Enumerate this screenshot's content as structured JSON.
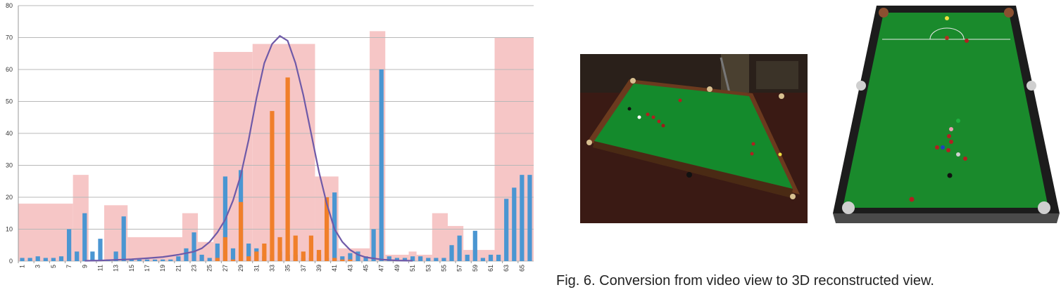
{
  "chart_data": {
    "type": "bar",
    "y_ticks": [
      "0",
      "10",
      "20",
      "30",
      "40",
      "50",
      "60",
      "70",
      "80"
    ],
    "ylim": [
      0,
      80
    ],
    "x_labels": [
      "1",
      "3",
      "5",
      "7",
      "9",
      "11",
      "13",
      "15",
      "17",
      "19",
      "21",
      "23",
      "25",
      "27",
      "29",
      "31",
      "33",
      "35",
      "37",
      "39",
      "41",
      "43",
      "45",
      "47",
      "49",
      "51",
      "53",
      "55",
      "57",
      "59",
      "61",
      "63",
      "65"
    ],
    "x_range": [
      1,
      66
    ],
    "grid": true,
    "background_segments": [
      {
        "x_start": 1,
        "x_end": 7,
        "value": 18
      },
      {
        "x_start": 8,
        "x_end": 9,
        "value": 27
      },
      {
        "x_start": 12,
        "x_end": 14,
        "value": 17.5
      },
      {
        "x_start": 15,
        "x_end": 21,
        "value": 7.5
      },
      {
        "x_start": 22,
        "x_end": 23,
        "value": 15
      },
      {
        "x_start": 24,
        "x_end": 25,
        "value": 6
      },
      {
        "x_start": 26,
        "x_end": 30,
        "value": 65.5
      },
      {
        "x_start": 31,
        "x_end": 38,
        "value": 68
      },
      {
        "x_start": 39,
        "x_end": 41,
        "value": 26.5
      },
      {
        "x_start": 42,
        "x_end": 45,
        "value": 4
      },
      {
        "x_start": 46,
        "x_end": 47,
        "value": 72
      },
      {
        "x_start": 48,
        "x_end": 50,
        "value": 2
      },
      {
        "x_start": 51,
        "x_end": 51,
        "value": 3
      },
      {
        "x_start": 52,
        "x_end": 53,
        "value": 2
      },
      {
        "x_start": 54,
        "x_end": 55,
        "value": 15
      },
      {
        "x_start": 56,
        "x_end": 57,
        "value": 11
      },
      {
        "x_start": 58,
        "x_end": 59,
        "value": 3.5
      },
      {
        "x_start": 60,
        "x_end": 61,
        "value": 3.5
      },
      {
        "x_start": 62,
        "x_end": 66,
        "value": 70
      }
    ],
    "series": [
      {
        "color": "#4a96d2",
        "x": [
          1,
          2,
          3,
          4,
          5,
          6,
          7,
          8,
          9,
          10,
          11,
          12,
          13,
          14,
          15,
          16,
          17,
          18,
          19,
          20,
          21,
          22,
          23,
          24,
          25,
          26,
          27,
          28,
          29,
          30,
          31,
          32,
          33,
          34,
          35,
          36,
          37,
          38,
          39,
          40,
          41,
          42,
          43,
          44,
          45,
          46,
          47,
          48,
          49,
          50,
          51,
          52,
          53,
          54,
          55,
          56,
          57,
          58,
          59,
          60,
          61,
          62,
          63,
          64,
          65,
          66
        ],
        "values": [
          1,
          1,
          1.5,
          1,
          1,
          1.5,
          10,
          3,
          15,
          3,
          7,
          0.5,
          3,
          14,
          0.5,
          0.5,
          0.5,
          0.5,
          0.5,
          0.5,
          1.5,
          4,
          9,
          2,
          1,
          5.5,
          26.5,
          4,
          28.5,
          5.5,
          4,
          1.5,
          2,
          3,
          2,
          2,
          1,
          1,
          2,
          1,
          21.5,
          1.5,
          2.5,
          3,
          1.5,
          10,
          60,
          1.5,
          1,
          1,
          1.5,
          1.5,
          1,
          1,
          1,
          5,
          8,
          2,
          9.5,
          1,
          2,
          2,
          19.5,
          23,
          27,
          27
        ]
      },
      {
        "color": "#f07f2a",
        "x": [
          26,
          27,
          28,
          29,
          30,
          31,
          32,
          33,
          34,
          35,
          36,
          37,
          38,
          39,
          40,
          41,
          42,
          43
        ],
        "values": [
          1,
          7.5,
          0.5,
          18.5,
          1.5,
          3,
          5.5,
          47,
          7.5,
          57.5,
          8,
          3,
          8,
          3.5,
          20,
          1,
          0.5,
          0.5
        ]
      },
      {
        "color": "#6f5aa8",
        "style": "line",
        "x": [
          9,
          11,
          13,
          15,
          17,
          19,
          21,
          23,
          24,
          25,
          26,
          27,
          28,
          29,
          30,
          31,
          32,
          33,
          34,
          35,
          36,
          37,
          38,
          39,
          40,
          41,
          42,
          43,
          44,
          45,
          47,
          49,
          51
        ],
        "values": [
          0.1,
          0.2,
          0.4,
          0.6,
          0.9,
          1.3,
          2,
          3,
          4,
          6,
          9,
          13,
          19,
          27,
          38,
          51,
          62,
          68,
          70.5,
          69,
          62,
          52,
          40,
          28,
          18,
          10,
          6,
          3.5,
          2,
          1.2,
          0.5,
          0.2,
          0.1
        ]
      }
    ]
  },
  "figures": {
    "left_photo_alt": "video view of snooker table",
    "right_photo_alt": "3D reconstructed view of snooker table"
  },
  "caption": "Fig. 6. Conversion from video view to 3D reconstructed view."
}
